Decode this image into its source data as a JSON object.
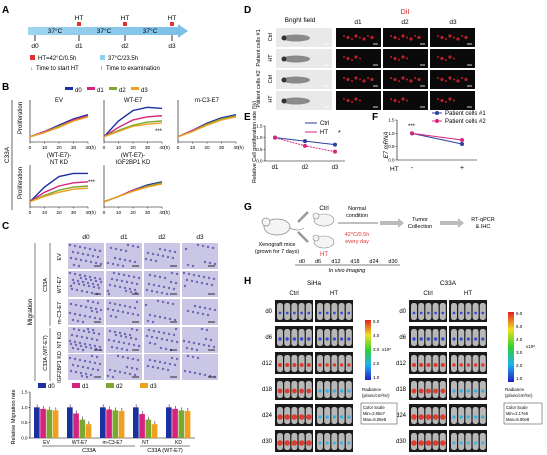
{
  "panels": {
    "A": {
      "letter": "A",
      "ht": "HT",
      "temp": "37°C",
      "days": [
        "d0",
        "d1",
        "d2",
        "d3"
      ],
      "legend_ht": "HT=42°C/0.5h",
      "legend_37": "37°C/23.5h",
      "legend_start": "Time to start HT",
      "legend_exam": "Time to examination"
    },
    "B": {
      "letter": "B",
      "side_label": "C33A",
      "y_label": "Proliferation",
      "x_unit": "(h)",
      "legend": [
        "d0",
        "d1",
        "d2",
        "d3"
      ],
      "sig": "***"
    },
    "C": {
      "letter": "C",
      "days": [
        "d0",
        "d1",
        "d2",
        "d3"
      ],
      "row_labels": [
        "EV",
        "WT-E7",
        "m-C3-E7",
        "NT KD",
        "IGF2BP1 KD"
      ],
      "side_group1": "C33A",
      "side_group2": "C33A (WT-E7)",
      "migration_label": "Migration",
      "y_label": "Relative Migration rate",
      "legend": [
        "d0",
        "d1",
        "d2",
        "d3"
      ],
      "x_labels": [
        "EV",
        "WT-E7",
        "m-C3-E7",
        "NT",
        "KD"
      ],
      "group1": "C33A",
      "group2": "C33A (WT-E7)"
    },
    "D": {
      "letter": "D",
      "col_headers": [
        "Bright field",
        "d1",
        "d2",
        "d3"
      ],
      "dil": "DiI",
      "row_labels": [
        "Ctrl",
        "HT",
        "Ctrl",
        "HT"
      ],
      "group_labels": [
        "Patient cells #1",
        "Patient cells #2"
      ]
    },
    "E": {
      "letter": "E",
      "y_label": "Relative Cell proliferation rate (%)",
      "legend": [
        "Ctrl",
        "HT"
      ],
      "sig": "*"
    },
    "F": {
      "letter": "F",
      "y_label": "E7 mRNA",
      "legend": [
        "Patient cells #1",
        "Patient cells #2"
      ],
      "x_labels": [
        "-",
        "+"
      ],
      "x_prefix": "HT",
      "sig": "***"
    },
    "G": {
      "letter": "G",
      "mice": "Xenograft mice (grown for 7 days)",
      "ctrl": "Ctrl",
      "ht": "HT",
      "normal": "Normal condition",
      "ht_cond": "42°C/0.5h every day",
      "collection": "Tumor Collection",
      "result": "RT-qPCR & IHC",
      "imaging": "In vivo imaging",
      "days": [
        "d0",
        "d6",
        "d12",
        "d18",
        "d24",
        "d30"
      ]
    },
    "H": {
      "letter": "H",
      "left_title": "SiHa",
      "right_title": "C33A",
      "col_labels": [
        "Ctrl",
        "HT"
      ],
      "row_labels": [
        "d0",
        "d6",
        "d12",
        "d18",
        "d24",
        "d30"
      ],
      "scale_exp": "x10⁸",
      "left_scale": [
        "5.0",
        "4.0",
        "3.0",
        "2.0",
        "1.0"
      ],
      "right_scale": [
        "6.0",
        "5.0",
        "4.0",
        "3.0",
        "2.0",
        "1.0"
      ],
      "radiance": "Radiance",
      "radiance_units": "(p/sec/cm²/sr)",
      "color_scale": "Color Scale",
      "left_min": "Min=2.65e7",
      "left_max": "Max=5.05e8",
      "right_min": "Min=2.17e6",
      "right_max": "Max=6.00e8"
    }
  },
  "chart_data": [
    {
      "panel": "B-EV",
      "type": "line",
      "title": "EV",
      "xlabel": "(h)",
      "ylabel": "Proliferation",
      "x": [
        0,
        10,
        20,
        30,
        40
      ],
      "series": [
        {
          "name": "d0",
          "values": [
            0.5,
            1.0,
            1.6,
            2.2,
            2.6
          ]
        },
        {
          "name": "d1",
          "values": [
            0.5,
            1.0,
            1.5,
            2.1,
            2.5
          ]
        },
        {
          "name": "d2",
          "values": [
            0.5,
            0.9,
            1.5,
            2.0,
            2.4
          ]
        },
        {
          "name": "d3",
          "values": [
            0.5,
            0.9,
            1.4,
            2.0,
            2.4
          ]
        }
      ]
    },
    {
      "panel": "B-WT-E7",
      "type": "line",
      "title": "WT-E7",
      "xlabel": "(h)",
      "ylabel": "",
      "x": [
        0,
        10,
        20,
        30,
        40
      ],
      "series": [
        {
          "name": "d0",
          "values": [
            0.5,
            2.0,
            3.0,
            3.3,
            3.2
          ]
        },
        {
          "name": "d1",
          "values": [
            0.5,
            1.4,
            2.1,
            2.4,
            2.5
          ]
        },
        {
          "name": "d2",
          "values": [
            0.5,
            1.1,
            1.6,
            1.9,
            2.0
          ]
        },
        {
          "name": "d3",
          "values": [
            0.5,
            1.0,
            1.5,
            1.7,
            1.8
          ]
        }
      ]
    },
    {
      "panel": "B-m-C3-E7",
      "type": "line",
      "title": "m-C3-E7",
      "xlabel": "(h)",
      "ylabel": "",
      "x": [
        0,
        10,
        20,
        30,
        40
      ],
      "series": [
        {
          "name": "d0",
          "values": [
            0.5,
            1.1,
            1.8,
            2.3,
            2.6
          ]
        },
        {
          "name": "d1",
          "values": [
            0.5,
            1.1,
            1.7,
            2.2,
            2.5
          ]
        },
        {
          "name": "d2",
          "values": [
            0.5,
            1.0,
            1.7,
            2.2,
            2.5
          ]
        },
        {
          "name": "d3",
          "values": [
            0.5,
            1.0,
            1.6,
            2.1,
            2.4
          ]
        }
      ]
    },
    {
      "panel": "B-NT-KD",
      "type": "line",
      "title": "(WT-E7)- NT KD",
      "xlabel": "(h)",
      "ylabel": "Proliferation",
      "x": [
        0,
        10,
        20,
        30,
        40
      ],
      "series": [
        {
          "name": "d0",
          "values": [
            0.5,
            1.9,
            2.9,
            3.2,
            3.2
          ]
        },
        {
          "name": "d1",
          "values": [
            0.5,
            1.4,
            2.0,
            2.3,
            2.4
          ]
        },
        {
          "name": "d2",
          "values": [
            0.5,
            1.1,
            1.6,
            1.9,
            2.0
          ]
        },
        {
          "name": "d3",
          "values": [
            0.5,
            1.0,
            1.4,
            1.7,
            1.8
          ]
        }
      ]
    },
    {
      "panel": "B-IGF2BP1-KD",
      "type": "line",
      "title": "(WT-E7)- IGF2BP1 KD",
      "xlabel": "(h)",
      "ylabel": "",
      "x": [
        0,
        10,
        20,
        30,
        40
      ],
      "series": [
        {
          "name": "d0",
          "values": [
            0.5,
            1.0,
            1.6,
            2.1,
            2.4
          ]
        },
        {
          "name": "d1",
          "values": [
            0.5,
            1.0,
            1.6,
            2.0,
            2.3
          ]
        },
        {
          "name": "d2",
          "values": [
            0.5,
            1.0,
            1.5,
            2.0,
            2.3
          ]
        },
        {
          "name": "d3",
          "values": [
            0.5,
            1.0,
            1.5,
            1.9,
            2.2
          ]
        }
      ]
    },
    {
      "panel": "C-bar",
      "type": "bar",
      "ylabel": "Relative Migration rate",
      "categories": [
        "EV",
        "WT-E7",
        "m-C3-E7",
        "NT",
        "KD"
      ],
      "ylim": [
        0,
        1.5
      ],
      "series": [
        {
          "name": "d0",
          "values": [
            1.0,
            1.0,
            1.0,
            1.0,
            1.0
          ]
        },
        {
          "name": "d1",
          "values": [
            0.95,
            0.8,
            0.93,
            0.78,
            0.95
          ]
        },
        {
          "name": "d2",
          "values": [
            0.92,
            0.6,
            0.9,
            0.6,
            0.9
          ]
        },
        {
          "name": "d3",
          "values": [
            0.9,
            0.45,
            0.88,
            0.45,
            0.88
          ]
        }
      ]
    },
    {
      "panel": "E",
      "type": "line",
      "ylabel": "Relative Cell proliferation rate (%)",
      "x": [
        "d1",
        "d2",
        "d3"
      ],
      "ylim": [
        0,
        1.5
      ],
      "series": [
        {
          "name": "Ctrl",
          "values": [
            1.0,
            0.85,
            0.7
          ]
        },
        {
          "name": "HT",
          "values": [
            1.0,
            0.65,
            0.4
          ]
        }
      ]
    },
    {
      "panel": "F",
      "type": "line",
      "ylabel": "E7 mRNA",
      "x": [
        "-",
        "+"
      ],
      "ylim": [
        0,
        1.5
      ],
      "series": [
        {
          "name": "Patient cells #1",
          "values": [
            1.0,
            0.6
          ]
        },
        {
          "name": "Patient cells #2",
          "values": [
            1.0,
            0.75
          ]
        }
      ]
    }
  ]
}
